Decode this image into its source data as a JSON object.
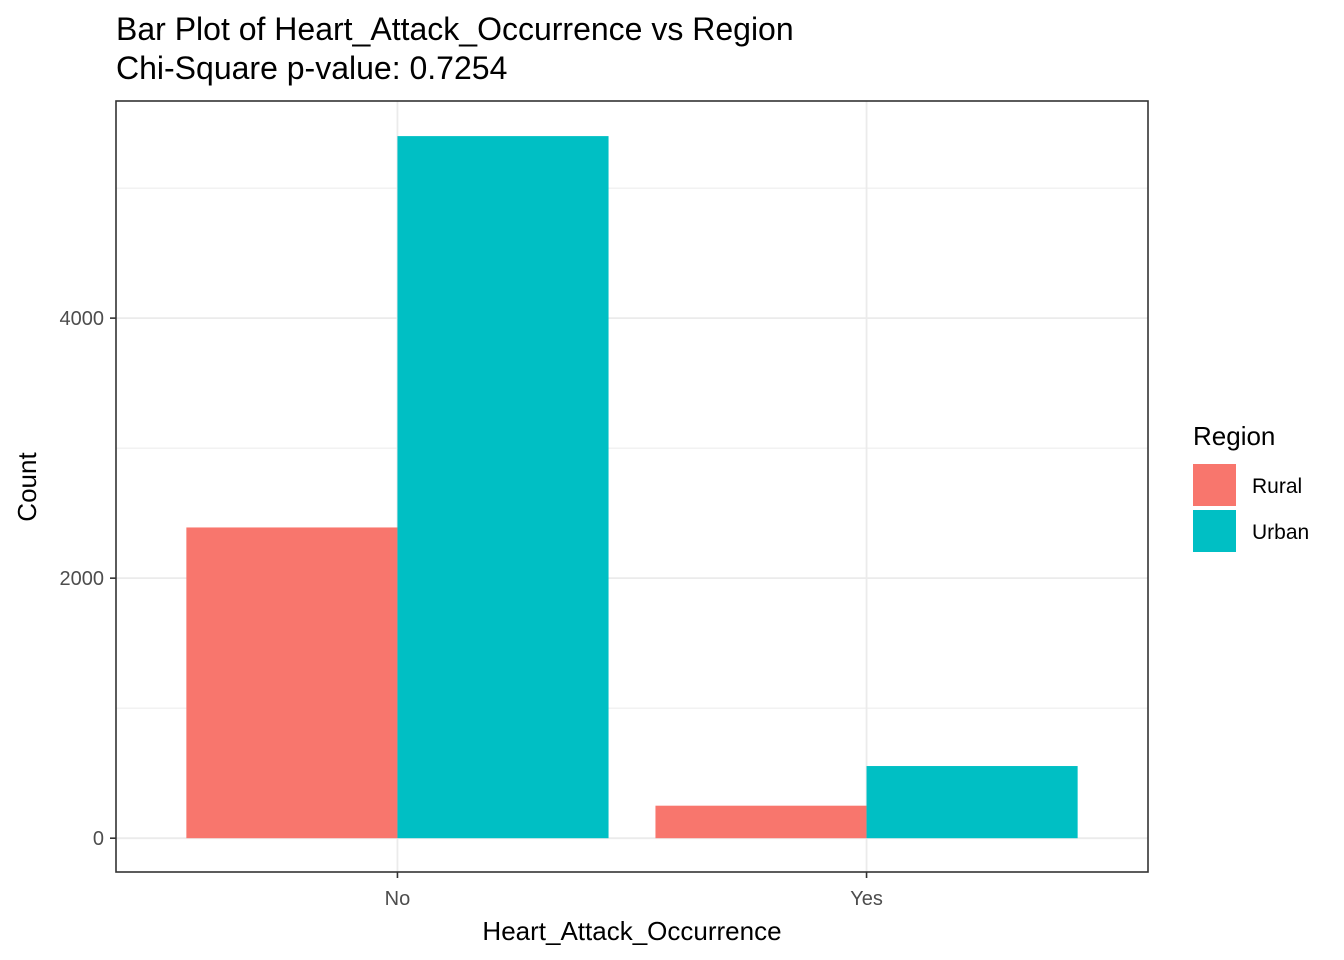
{
  "chart_data": {
    "type": "bar",
    "title": "Bar Plot of Heart_Attack_Occurrence vs Region",
    "subtitle": "Chi-Square p-value: 0.7254",
    "xlabel": "Heart_Attack_Occurrence",
    "ylabel": "Count",
    "categories": [
      "No",
      "Yes"
    ],
    "series": [
      {
        "name": "Rural",
        "color": "#F8766D",
        "values": [
          2390,
          250
        ]
      },
      {
        "name": "Urban",
        "color": "#00BFC4",
        "values": [
          5400,
          555
        ]
      }
    ],
    "y_ticks": [
      0,
      2000,
      4000
    ],
    "y_tick_labels": [
      "0",
      "2000",
      "4000"
    ],
    "y_minor_ticks": [
      1000,
      3000,
      5000
    ],
    "ylim": [
      -260,
      5670
    ],
    "grid": true,
    "legend": {
      "title": "Region",
      "position": "right"
    }
  }
}
